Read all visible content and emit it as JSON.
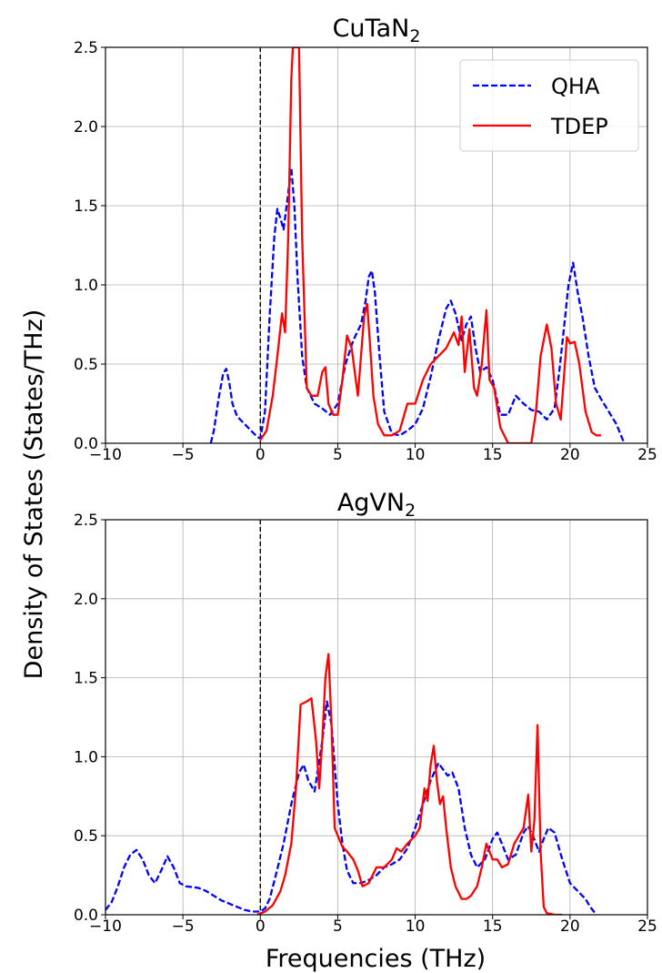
{
  "figure": {
    "ylabel": "Density of States (States/THz)",
    "xlabel": "Frequencies (THz)"
  },
  "chart_data": [
    {
      "type": "line",
      "title": "CuTaN",
      "title_subscript": "2",
      "xlim": [
        -10,
        25
      ],
      "ylim": [
        0,
        2.5
      ],
      "xticks": [
        -10,
        -5,
        0,
        5,
        10,
        15,
        20,
        25
      ],
      "xtick_labels": [
        "−10",
        "−5",
        "0",
        "5",
        "10",
        "15",
        "20",
        "25"
      ],
      "yticks": [
        0,
        0.5,
        1,
        1.5,
        2,
        2.5
      ],
      "ytick_labels": [
        "0.0",
        "0.5",
        "1.0",
        "1.5",
        "2.0",
        "2.5"
      ],
      "grid": true,
      "vline_x": 0,
      "legend": {
        "position": "top-right",
        "entries": [
          "QHA",
          "TDEP"
        ]
      },
      "series": [
        {
          "name": "QHA",
          "color": "#0000ff",
          "dash": "dashed",
          "x": [
            -3.2,
            -3.0,
            -2.7,
            -2.4,
            -2.2,
            -2.0,
            -1.8,
            -1.5,
            -1.0,
            -0.5,
            -0.2,
            0.0,
            0.3,
            0.6,
            0.9,
            1.1,
            1.3,
            1.5,
            1.7,
            2.0,
            2.2,
            2.4,
            2.7,
            3.0,
            3.5,
            4.0,
            4.5,
            5.0,
            5.5,
            6.0,
            6.5,
            6.8,
            7.0,
            7.2,
            7.4,
            7.7,
            8.0,
            8.5,
            9.0,
            9.5,
            10.0,
            10.5,
            11.0,
            11.5,
            12.0,
            12.3,
            12.6,
            13.0,
            13.3,
            13.6,
            13.9,
            14.2,
            14.6,
            15.0,
            15.5,
            16.0,
            16.5,
            17.0,
            17.5,
            18.0,
            18.5,
            19.0,
            19.3,
            19.6,
            19.9,
            20.2,
            20.5,
            20.8,
            21.2,
            21.6,
            22.0,
            22.5,
            23.0,
            23.5
          ],
          "y": [
            0.0,
            0.08,
            0.28,
            0.44,
            0.47,
            0.38,
            0.25,
            0.17,
            0.12,
            0.07,
            0.04,
            0.03,
            0.2,
            0.8,
            1.3,
            1.48,
            1.42,
            1.35,
            1.5,
            1.74,
            1.5,
            1.05,
            0.55,
            0.35,
            0.25,
            0.22,
            0.18,
            0.25,
            0.5,
            0.65,
            0.75,
            0.9,
            1.05,
            1.09,
            0.95,
            0.55,
            0.2,
            0.06,
            0.05,
            0.08,
            0.12,
            0.22,
            0.42,
            0.65,
            0.85,
            0.9,
            0.82,
            0.65,
            0.75,
            0.8,
            0.6,
            0.45,
            0.48,
            0.4,
            0.18,
            0.18,
            0.3,
            0.25,
            0.21,
            0.2,
            0.15,
            0.22,
            0.45,
            0.72,
            1.0,
            1.14,
            0.95,
            0.8,
            0.55,
            0.35,
            0.28,
            0.2,
            0.12,
            0.0
          ]
        },
        {
          "name": "TDEP",
          "color": "#ff0000",
          "dash": "solid",
          "x": [
            0.0,
            0.4,
            0.8,
            1.1,
            1.4,
            1.6,
            1.8,
            2.0,
            2.1,
            2.3,
            2.5,
            2.7,
            3.0,
            3.3,
            3.7,
            4.0,
            4.2,
            4.4,
            4.7,
            5.0,
            5.3,
            5.6,
            5.9,
            6.1,
            6.3,
            6.5,
            6.7,
            6.9,
            7.1,
            7.3,
            7.6,
            8.0,
            8.5,
            9.0,
            9.5,
            10.0,
            10.5,
            11.0,
            11.5,
            12.0,
            12.5,
            12.8,
            13.0,
            13.2,
            13.5,
            13.8,
            14.0,
            14.3,
            14.6,
            14.8,
            15.1,
            15.5,
            16.0,
            16.5,
            17.0,
            17.5,
            17.8,
            18.1,
            18.5,
            18.8,
            19.1,
            19.4,
            19.8,
            20.0,
            20.3,
            20.6,
            21.0,
            21.4,
            21.7,
            22.0
          ],
          "y": [
            0.02,
            0.08,
            0.3,
            0.55,
            0.82,
            0.7,
            1.3,
            2.3,
            2.5,
            2.5,
            2.5,
            1.3,
            0.35,
            0.3,
            0.3,
            0.45,
            0.48,
            0.25,
            0.18,
            0.18,
            0.4,
            0.68,
            0.6,
            0.45,
            0.3,
            0.55,
            0.8,
            0.88,
            0.6,
            0.3,
            0.12,
            0.05,
            0.05,
            0.08,
            0.25,
            0.25,
            0.4,
            0.5,
            0.55,
            0.6,
            0.7,
            0.62,
            0.8,
            0.45,
            0.72,
            0.35,
            0.3,
            0.5,
            0.84,
            0.4,
            0.35,
            0.1,
            0.0,
            0.0,
            0.0,
            0.0,
            0.2,
            0.55,
            0.75,
            0.6,
            0.25,
            0.15,
            0.67,
            0.63,
            0.64,
            0.5,
            0.2,
            0.07,
            0.05,
            0.05
          ]
        }
      ]
    },
    {
      "type": "line",
      "title": "AgVN",
      "title_subscript": "2",
      "xlim": [
        -10,
        25
      ],
      "ylim": [
        0,
        2.5
      ],
      "xticks": [
        -10,
        -5,
        0,
        5,
        10,
        15,
        20,
        25
      ],
      "xtick_labels": [
        "−10",
        "−5",
        "0",
        "5",
        "10",
        "15",
        "20",
        "25"
      ],
      "yticks": [
        0,
        0.5,
        1,
        1.5,
        2,
        2.5
      ],
      "ytick_labels": [
        "0.0",
        "0.5",
        "1.0",
        "1.5",
        "2.0",
        "2.5"
      ],
      "grid": true,
      "vline_x": 0,
      "series": [
        {
          "name": "QHA",
          "color": "#0000ff",
          "dash": "dashed",
          "x": [
            -10.0,
            -9.6,
            -9.2,
            -8.8,
            -8.4,
            -8.0,
            -7.6,
            -7.2,
            -6.8,
            -6.4,
            -6.0,
            -5.6,
            -5.2,
            -4.8,
            -4.0,
            -3.5,
            -3.0,
            -2.5,
            -2.0,
            -1.5,
            -1.0,
            -0.5,
            0.0,
            0.3,
            0.6,
            1.0,
            1.5,
            2.0,
            2.5,
            2.8,
            3.1,
            3.5,
            4.0,
            4.3,
            4.6,
            5.0,
            5.3,
            5.6,
            6.0,
            6.5,
            7.0,
            7.5,
            8.0,
            8.5,
            9.0,
            9.5,
            10.0,
            10.5,
            11.0,
            11.5,
            11.8,
            12.1,
            12.4,
            12.8,
            13.2,
            13.6,
            14.0,
            14.5,
            15.0,
            15.3,
            15.6,
            16.0,
            16.5,
            17.0,
            17.3,
            17.6,
            18.0,
            18.3,
            18.6,
            19.0,
            19.5,
            20.0,
            20.5,
            21.0,
            21.3,
            21.7
          ],
          "y": [
            0.03,
            0.08,
            0.18,
            0.3,
            0.38,
            0.41,
            0.35,
            0.25,
            0.2,
            0.28,
            0.37,
            0.3,
            0.2,
            0.18,
            0.17,
            0.15,
            0.12,
            0.09,
            0.07,
            0.05,
            0.03,
            0.02,
            0.02,
            0.04,
            0.1,
            0.25,
            0.45,
            0.7,
            0.9,
            0.95,
            0.85,
            0.78,
            1.1,
            1.35,
            1.2,
            0.7,
            0.45,
            0.28,
            0.2,
            0.2,
            0.22,
            0.25,
            0.3,
            0.32,
            0.35,
            0.42,
            0.55,
            0.7,
            0.85,
            0.96,
            0.92,
            0.88,
            0.9,
            0.8,
            0.55,
            0.38,
            0.3,
            0.35,
            0.48,
            0.52,
            0.45,
            0.35,
            0.38,
            0.52,
            0.56,
            0.5,
            0.4,
            0.48,
            0.55,
            0.52,
            0.35,
            0.2,
            0.15,
            0.1,
            0.05,
            0.0
          ]
        },
        {
          "name": "TDEP",
          "color": "#ff0000",
          "dash": "solid",
          "x": [
            -0.2,
            0.3,
            0.8,
            1.3,
            1.6,
            2.0,
            2.3,
            2.6,
            3.0,
            3.3,
            3.6,
            3.8,
            4.0,
            4.2,
            4.4,
            4.6,
            4.8,
            5.0,
            5.3,
            5.6,
            6.0,
            6.3,
            6.6,
            7.0,
            7.5,
            8.0,
            8.5,
            8.8,
            9.1,
            9.5,
            10.0,
            10.3,
            10.6,
            10.8,
            11.0,
            11.2,
            11.4,
            11.6,
            11.8,
            12.0,
            12.3,
            12.6,
            13.0,
            13.3,
            13.6,
            14.0,
            14.3,
            14.6,
            15.0,
            15.3,
            15.6,
            16.0,
            16.4,
            16.7,
            17.0,
            17.3,
            17.5,
            17.7,
            17.9,
            18.1,
            18.3,
            18.5,
            19.0,
            19.5
          ],
          "y": [
            0.0,
            0.02,
            0.06,
            0.15,
            0.25,
            0.45,
            0.8,
            1.33,
            1.35,
            1.37,
            1.1,
            0.8,
            1.1,
            1.5,
            1.65,
            1.2,
            0.55,
            0.5,
            0.43,
            0.4,
            0.35,
            0.28,
            0.18,
            0.2,
            0.3,
            0.3,
            0.35,
            0.42,
            0.4,
            0.45,
            0.5,
            0.55,
            0.8,
            0.72,
            0.95,
            1.07,
            0.85,
            0.7,
            0.75,
            0.55,
            0.3,
            0.18,
            0.1,
            0.1,
            0.12,
            0.18,
            0.3,
            0.45,
            0.35,
            0.35,
            0.3,
            0.32,
            0.45,
            0.5,
            0.55,
            0.76,
            0.4,
            0.6,
            1.2,
            0.4,
            0.05,
            0.01,
            0.0,
            0.0
          ]
        }
      ]
    }
  ]
}
